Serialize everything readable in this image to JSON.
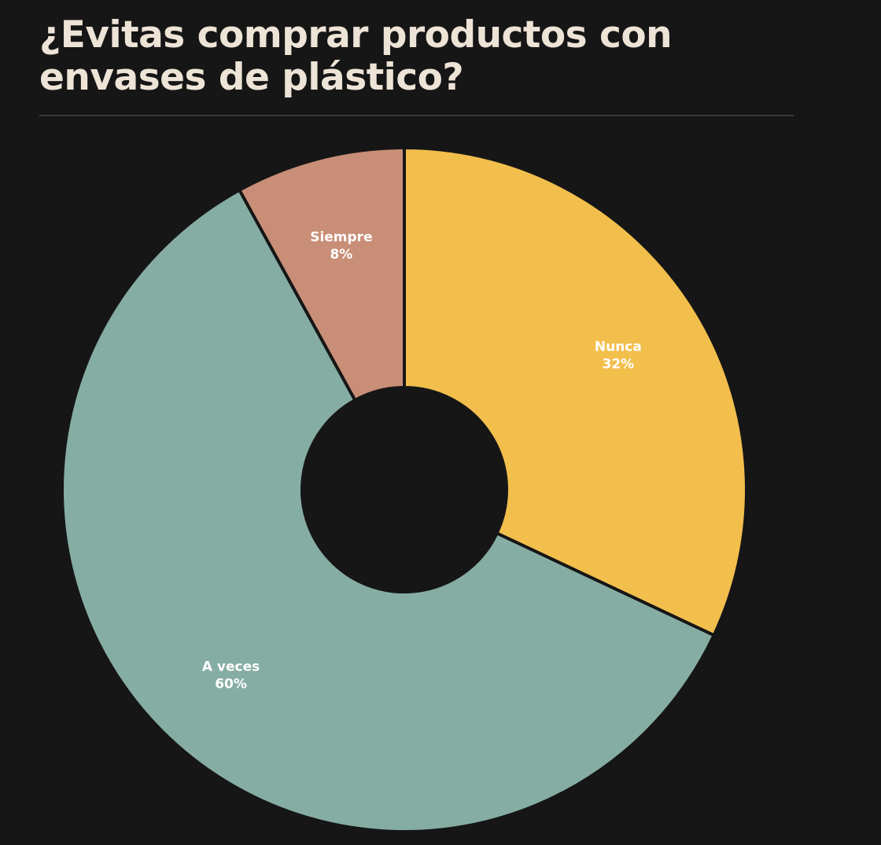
{
  "chart_data": {
    "type": "pie",
    "title": "¿Evitas comprar productos con envases de plástico?",
    "slices": [
      {
        "label": "Nunca",
        "value": 32,
        "display": "32%",
        "color": "#f2bf4d"
      },
      {
        "label": "A veces",
        "value": 60,
        "display": "60%",
        "color": "#86ada3"
      },
      {
        "label": "Siempre",
        "value": 8,
        "display": "8%",
        "color": "#c98e77"
      }
    ],
    "start_angle_deg": 0,
    "direction": "clockwise",
    "donut_hole": true
  },
  "colors": {
    "background": "#161616",
    "title": "#ede3d6",
    "divider": "#3a3a3a",
    "label": "#ffffff"
  }
}
